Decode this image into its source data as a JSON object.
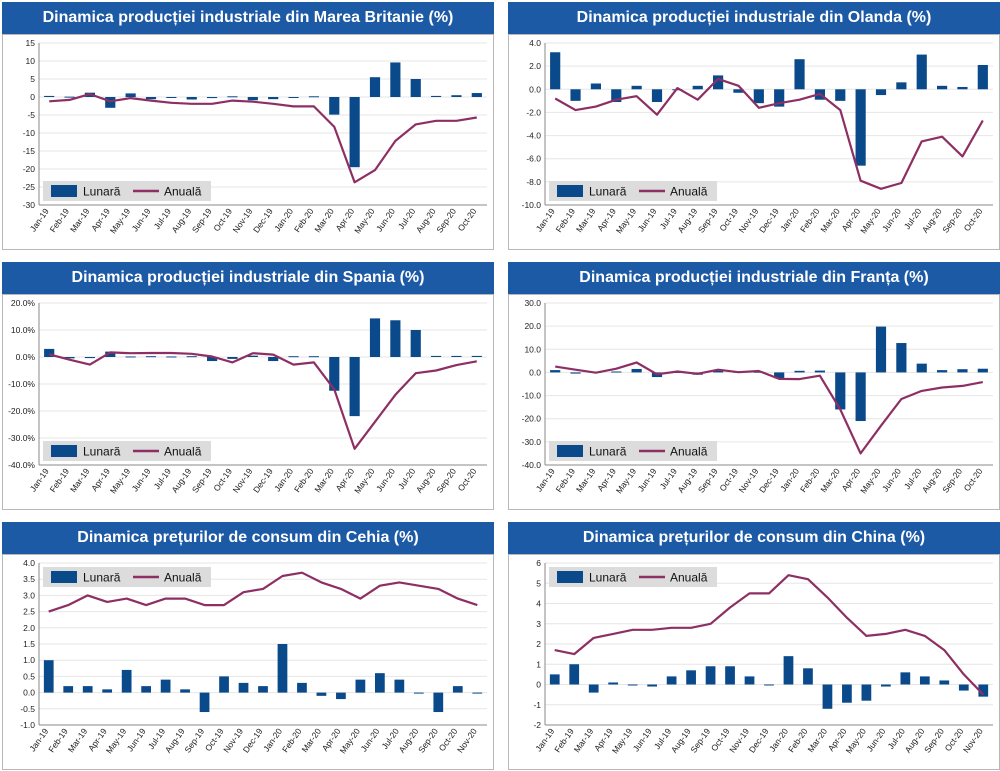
{
  "colors": {
    "bar": "#0b4a8a",
    "line": "#8e2f63",
    "header": "#1d5aa6",
    "legend_bg": "#dcdcdc"
  },
  "panels": [
    {
      "title": "Dinamica producției industriale din Marea Britanie (%)"
    },
    {
      "title": "Dinamica producției industriale din Olanda (%)"
    },
    {
      "title": "Dinamica producției industriale din Spania (%)"
    },
    {
      "title": "Dinamica producției industriale din Franța (%)"
    },
    {
      "title": "Dinamica prețurilor de consum din Cehia (%)"
    },
    {
      "title": "Dinamica prețurilor de consum din China (%)"
    }
  ],
  "chart_data": [
    {
      "type": "bar+line",
      "title": "Dinamica producției industriale din Marea Britanie (%)",
      "categories": [
        "Jan-19",
        "Feb-19",
        "Mar-19",
        "Apr-19",
        "May-19",
        "Jun-19",
        "Jul-19",
        "Aug-19",
        "Sep-19",
        "Oct-19",
        "Nov-19",
        "Dec-19",
        "Jan-20",
        "Feb-20",
        "Mar-20",
        "Apr-20",
        "May-20",
        "Jun-20",
        "Jul-20",
        "Aug-20",
        "Sep-20",
        "Oct-20"
      ],
      "tick_labels": [
        "-30",
        "-25",
        "-20",
        "-15",
        "-10",
        "-5",
        "0",
        "5",
        "10",
        "15"
      ],
      "ylim": [
        -30,
        15
      ],
      "yticks": [
        -30,
        -25,
        -20,
        -15,
        -10,
        -5,
        0,
        5,
        10,
        15
      ],
      "legend_position": "bottom-left",
      "series": [
        {
          "name": "Lunară",
          "kind": "bar",
          "values": [
            0.3,
            0.1,
            1.2,
            -3.0,
            1.0,
            -0.6,
            -0.2,
            -0.7,
            -0.3,
            0.2,
            -0.9,
            -0.6,
            -0.2,
            0.2,
            -4.9,
            -19.5,
            5.5,
            9.6,
            5.0,
            0.3,
            0.5,
            1.1
          ]
        },
        {
          "name": "Anuală",
          "kind": "line",
          "values": [
            -1.2,
            -0.8,
            0.8,
            -1.2,
            -0.3,
            -1.0,
            -1.6,
            -1.9,
            -1.9,
            -1.0,
            -1.3,
            -1.9,
            -2.6,
            -2.6,
            -8.3,
            -23.7,
            -20.3,
            -12.2,
            -7.6,
            -6.6,
            -6.6,
            -5.7
          ]
        }
      ]
    },
    {
      "type": "bar+line",
      "title": "Dinamica producției industriale din Olanda (%)",
      "categories": [
        "Jan-19",
        "Feb-19",
        "Mar-19",
        "Apr-19",
        "May-19",
        "Jun-19",
        "Jul-19",
        "Aug-19",
        "Sep-19",
        "Oct-19",
        "Nov-19",
        "Dec-19",
        "Jan-20",
        "Feb-20",
        "Mar-20",
        "Apr-20",
        "May-20",
        "Jun-20",
        "Jul-20",
        "Aug-20",
        "Sep-20",
        "Oct-20"
      ],
      "tick_labels": [
        "-10.0",
        "-8.0",
        "-6.0",
        "-4.0",
        "-2.0",
        "0.0",
        "2.0",
        "4.0"
      ],
      "ylim": [
        -10,
        4
      ],
      "yticks": [
        -10,
        -8,
        -6,
        -4,
        -2,
        0,
        2,
        4
      ],
      "legend_position": "bottom-left",
      "series": [
        {
          "name": "Lunară",
          "kind": "bar",
          "values": [
            3.2,
            -1.0,
            0.5,
            -1.1,
            0.3,
            -1.1,
            0.0,
            0.3,
            1.2,
            -0.3,
            -1.2,
            -1.5,
            2.6,
            -0.9,
            -1.0,
            -6.6,
            -0.5,
            0.6,
            3.0,
            0.3,
            0.2,
            2.1
          ]
        },
        {
          "name": "Anuală",
          "kind": "line",
          "values": [
            -0.8,
            -1.8,
            -1.5,
            -0.9,
            -0.6,
            -2.2,
            0.1,
            -0.9,
            0.9,
            0.3,
            -1.6,
            -1.2,
            -0.9,
            -0.4,
            -1.8,
            -7.9,
            -8.6,
            -8.1,
            -4.5,
            -4.1,
            -5.8,
            -2.7
          ]
        }
      ]
    },
    {
      "type": "bar+line",
      "title": "Dinamica producției industriale din Spania (%)",
      "categories": [
        "Jan-19",
        "Feb-19",
        "Mar-19",
        "Apr-19",
        "May-19",
        "Jun-19",
        "Jul-19",
        "Aug-19",
        "Sep-19",
        "Oct-19",
        "Nov-19",
        "Dec-19",
        "Jan-20",
        "Feb-20",
        "Mar-20",
        "Apr-20",
        "May-20",
        "Jun-20",
        "Jul-20",
        "Aug-20",
        "Sep-20",
        "Oct-20"
      ],
      "tick_labels": [
        "-40.0%",
        "-30.0%",
        "-20.0%",
        "-10.0%",
        "0.0%",
        "10.0%",
        "20.0%"
      ],
      "ylim": [
        -40,
        20
      ],
      "yticks": [
        -40,
        -30,
        -20,
        -10,
        0,
        10,
        20
      ],
      "legend_position": "bottom-left",
      "series": [
        {
          "name": "Lunară",
          "kind": "bar",
          "values": [
            3.0,
            -0.5,
            -0.4,
            2.0,
            0.2,
            0.3,
            0.2,
            0.3,
            -1.5,
            -0.7,
            0.5,
            -1.5,
            0.3,
            0.3,
            -12.5,
            -21.9,
            14.3,
            13.6,
            10.0,
            0.4,
            0.4,
            0.4
          ]
        },
        {
          "name": "Anuală",
          "kind": "line",
          "values": [
            1.0,
            -1.0,
            -2.8,
            1.7,
            1.4,
            1.5,
            1.5,
            1.2,
            0.2,
            -2.0,
            1.4,
            0.9,
            -2.8,
            -2.0,
            -12.0,
            -34.0,
            -24.0,
            -14.0,
            -6.0,
            -5.0,
            -3.0,
            -1.6
          ]
        }
      ]
    },
    {
      "type": "bar+line",
      "title": "Dinamica producției industriale din Franța (%)",
      "categories": [
        "Jan-19",
        "Feb-19",
        "Mar-19",
        "Apr-19",
        "May-19",
        "Jun-19",
        "Jul-19",
        "Aug-19",
        "Sep-19",
        "Oct-19",
        "Nov-19",
        "Dec-19",
        "Jan-20",
        "Feb-20",
        "Mar-20",
        "Apr-20",
        "May-20",
        "Jun-20",
        "Jul-20",
        "Aug-20",
        "Sep-20",
        "Oct-20"
      ],
      "tick_labels": [
        "-40.0",
        "-30.0",
        "-20.0",
        "-10.0",
        "0.0",
        "10.0",
        "20.0",
        "30.0"
      ],
      "ylim": [
        -40,
        30
      ],
      "yticks": [
        -40,
        -30,
        -20,
        -10,
        0,
        10,
        20,
        30
      ],
      "legend_position": "bottom-left",
      "series": [
        {
          "name": "Lunară",
          "kind": "bar",
          "values": [
            1.0,
            -0.5,
            0.2,
            0.4,
            1.5,
            -2.0,
            0.2,
            -1.0,
            0.8,
            0.3,
            0.3,
            -2.5,
            0.7,
            0.8,
            -16.0,
            -21.0,
            19.8,
            12.7,
            3.8,
            1.0,
            1.4,
            1.6
          ]
        },
        {
          "name": "Anuală",
          "kind": "line",
          "values": [
            2.5,
            1.2,
            -0.1,
            1.6,
            4.3,
            -0.8,
            0.4,
            -0.6,
            1.2,
            0.1,
            0.6,
            -2.8,
            -2.9,
            -1.4,
            -16.0,
            -35.0,
            -23.0,
            -11.5,
            -8.0,
            -6.5,
            -5.8,
            -4.2
          ]
        }
      ]
    },
    {
      "type": "bar+line",
      "title": "Dinamica prețurilor de consum din Cehia (%)",
      "categories": [
        "Jan-19",
        "Feb-19",
        "Mar-19",
        "Apr-19",
        "May-19",
        "Jun-19",
        "Jul-19",
        "Aug-19",
        "Sep-19",
        "Oct-19",
        "Nov-19",
        "Dec-19",
        "Jan-20",
        "Feb-20",
        "Mar-20",
        "Apr-20",
        "May-20",
        "Jun-20",
        "Jul-20",
        "Aug-20",
        "Sep-20",
        "Oct-20",
        "Nov-20"
      ],
      "tick_labels": [
        "-1.0",
        "-0.5",
        "0.0",
        "0.5",
        "1.0",
        "1.5",
        "2.0",
        "2.5",
        "3.0",
        "3.5",
        "4.0"
      ],
      "ylim": [
        -1,
        4
      ],
      "yticks": [
        -1,
        -0.5,
        0,
        0.5,
        1,
        1.5,
        2,
        2.5,
        3,
        3.5,
        4
      ],
      "legend_position": "top-left",
      "series": [
        {
          "name": "Lunară",
          "kind": "bar",
          "values": [
            1.0,
            0.2,
            0.2,
            0.1,
            0.7,
            0.2,
            0.4,
            0.1,
            -0.6,
            0.5,
            0.3,
            0.2,
            1.5,
            0.3,
            -0.1,
            -0.2,
            0.4,
            0.6,
            0.4,
            0.0,
            -0.6,
            0.2,
            0.0
          ]
        },
        {
          "name": "Anuală",
          "kind": "line",
          "values": [
            2.5,
            2.7,
            3.0,
            2.8,
            2.9,
            2.7,
            2.9,
            2.9,
            2.7,
            2.7,
            3.1,
            3.2,
            3.6,
            3.7,
            3.4,
            3.2,
            2.9,
            3.3,
            3.4,
            3.3,
            3.2,
            2.9,
            2.7
          ]
        }
      ]
    },
    {
      "type": "bar+line",
      "title": "Dinamica prețurilor de consum din China (%)",
      "categories": [
        "Jan-19",
        "Feb-19",
        "Mar-19",
        "Apr-19",
        "May-19",
        "Jun-19",
        "Jul-19",
        "Aug-19",
        "Sep-19",
        "Oct-19",
        "Nov-19",
        "Dec-19",
        "Jan-20",
        "Feb-20",
        "Mar-20",
        "Apr-20",
        "May-20",
        "Jun-20",
        "Jul-20",
        "Aug-20",
        "Sep-20",
        "Oct-20",
        "Nov-20"
      ],
      "tick_labels": [
        "-2",
        "-1",
        "0",
        "1",
        "2",
        "3",
        "4",
        "5",
        "6"
      ],
      "ylim": [
        -2,
        6
      ],
      "yticks": [
        -2,
        -1,
        0,
        1,
        2,
        3,
        4,
        5,
        6
      ],
      "legend_position": "top-left",
      "series": [
        {
          "name": "Lunară",
          "kind": "bar",
          "values": [
            0.5,
            1.0,
            -0.4,
            0.1,
            0.0,
            -0.1,
            0.4,
            0.7,
            0.9,
            0.9,
            0.4,
            0.0,
            1.4,
            0.8,
            -1.2,
            -0.9,
            -0.8,
            -0.1,
            0.6,
            0.4,
            0.2,
            -0.3,
            -0.6
          ]
        },
        {
          "name": "Anuală",
          "kind": "line",
          "values": [
            1.7,
            1.5,
            2.3,
            2.5,
            2.7,
            2.7,
            2.8,
            2.8,
            3.0,
            3.8,
            4.5,
            4.5,
            5.4,
            5.2,
            4.3,
            3.3,
            2.4,
            2.5,
            2.7,
            2.4,
            1.7,
            0.5,
            -0.5
          ]
        }
      ]
    }
  ]
}
